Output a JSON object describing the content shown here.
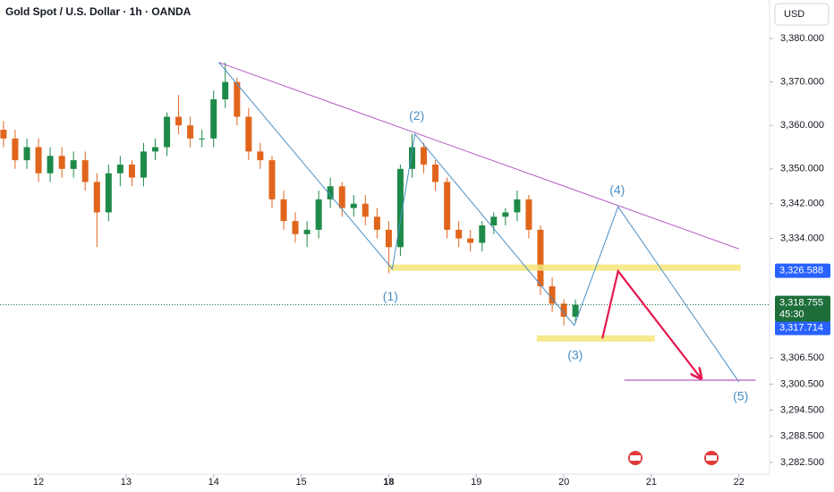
{
  "chart_data": {
    "type": "candlestick",
    "title": "Gold Spot / U.S. Dollar · 1h · OANDA",
    "currency": "USD",
    "up_color": "#1e8a4a",
    "down_color": "#e0651c",
    "xlim": [
      -0.44,
      8.35
    ],
    "ylim": [
      3279.8,
      3388.85
    ],
    "xticks": [
      {
        "value": 0,
        "label": "12"
      },
      {
        "value": 1,
        "label": "13"
      },
      {
        "value": 2,
        "label": "14"
      },
      {
        "value": 3,
        "label": "15"
      },
      {
        "value": 4,
        "label": "18"
      },
      {
        "value": 5,
        "label": "19"
      },
      {
        "value": 6,
        "label": "20"
      },
      {
        "value": 7,
        "label": "21"
      },
      {
        "value": 8,
        "label": "22"
      }
    ],
    "yticks": [
      {
        "value": 3380,
        "label": "3,380.000"
      },
      {
        "value": 3370,
        "label": "3,370.000"
      },
      {
        "value": 3360,
        "label": "3,360.000"
      },
      {
        "value": 3350,
        "label": "3,350.000"
      },
      {
        "value": 3342,
        "label": "3,342.000"
      },
      {
        "value": 3334,
        "label": "3,334.000"
      },
      {
        "value": 3306.5,
        "label": "3,306.500"
      },
      {
        "value": 3300.5,
        "label": "3,300.500"
      },
      {
        "value": 3294.5,
        "label": "3,294.500"
      },
      {
        "value": 3288.5,
        "label": "3,288.500"
      },
      {
        "value": 3282.5,
        "label": "3,282.500"
      }
    ],
    "x": [
      -0.4,
      -0.267,
      -0.133,
      0,
      0.133,
      0.267,
      0.4,
      0.533,
      0.667,
      0.8,
      0.933,
      1.067,
      1.2,
      1.333,
      1.467,
      1.6,
      1.733,
      1.867,
      2.0,
      2.133,
      2.267,
      2.4,
      2.533,
      2.667,
      2.8,
      2.933,
      3.067,
      3.2,
      3.333,
      3.467,
      3.6,
      3.733,
      3.867,
      4.0,
      4.133,
      4.267,
      4.4,
      4.533,
      4.667,
      4.8,
      4.933,
      5.067,
      5.2,
      5.333,
      5.467,
      5.6,
      5.733,
      5.867,
      6.0,
      6.133
    ],
    "open": [
      3359,
      3357,
      3352,
      3355,
      3349,
      3353,
      3350,
      3352,
      3347,
      3340,
      3349,
      3351,
      3348,
      3354,
      3355,
      3362,
      3360,
      3357,
      3357,
      3366,
      3370,
      3362,
      3354,
      3352,
      3343,
      3338,
      3335,
      3336,
      3343,
      3346,
      3341,
      3342,
      3339,
      3336,
      3332,
      3350,
      3355,
      3351,
      3347,
      3336,
      3334,
      3333,
      3337,
      3339,
      3340,
      3343,
      3336,
      3323,
      3319,
      3316
    ],
    "high": [
      3361,
      3359,
      3357,
      3357,
      3355,
      3355,
      3354,
      3354,
      3349,
      3351,
      3353,
      3352,
      3356,
      3357,
      3363,
      3367,
      3362,
      3359,
      3368,
      3374.5,
      3371,
      3364,
      3356,
      3353,
      3345,
      3340,
      3338,
      3345,
      3348,
      3347,
      3344,
      3344,
      3341,
      3338,
      3351,
      3358,
      3356,
      3352,
      3348,
      3338,
      3336,
      3338,
      3340,
      3341,
      3345,
      3344,
      3337,
      3325,
      3320,
      3320
    ],
    "low": [
      3355,
      3350,
      3350,
      3347,
      3347,
      3348,
      3348,
      3345,
      3332,
      3338,
      3346,
      3346,
      3346,
      3352,
      3353,
      3358,
      3355,
      3355,
      3355,
      3364,
      3360,
      3352,
      3350,
      3341,
      3336,
      3333,
      3332,
      3334,
      3341,
      3339,
      3339,
      3337,
      3334,
      3326,
      3330,
      3348,
      3349,
      3345,
      3334,
      3332,
      3331,
      3331,
      3335,
      3337,
      3338,
      3334,
      3321,
      3317,
      3314,
      3314.5
    ],
    "close": [
      3357,
      3352,
      3355,
      3349,
      3353,
      3350,
      3352,
      3347,
      3340,
      3349,
      3351,
      3348,
      3354,
      3355,
      3362,
      3360,
      3357,
      3357,
      3366,
      3370,
      3362,
      3354,
      3352,
      3343,
      3338,
      3335,
      3336,
      3343,
      3346,
      3341,
      3342,
      3339,
      3336,
      3332,
      3350,
      3355,
      3351,
      3347,
      3336,
      3334,
      3333,
      3337,
      3339,
      3340,
      3343,
      3336,
      3323,
      3319,
      3316,
      3318.755
    ],
    "last_price": {
      "value": 3318.755,
      "label": "3,318.755",
      "countdown": "45:30",
      "color": "#1e6e3a"
    },
    "price_labels": [
      {
        "value": 3326.588,
        "label": "3,326.588",
        "color": "#2962ff"
      },
      {
        "value": 3317.714,
        "label": "3,317.714",
        "color": "#2962ff"
      }
    ],
    "trendline": {
      "x": [
        2.06,
        8.0
      ],
      "y": [
        3374.5,
        3331.6
      ],
      "color": "#b35cc0"
    },
    "wave": {
      "x": [
        2.06,
        4.04,
        4.3,
        6.12,
        6.62,
        8.0
      ],
      "y": [
        3374.5,
        3327,
        3358,
        3314,
        3341.3,
        3301
      ],
      "color": "#4a8fc6"
    },
    "zones": [
      {
        "x": [
          4.0,
          8.02
        ],
        "y": 3327.3
      },
      {
        "x": [
          5.69,
          7.04
        ],
        "y": 3311
      }
    ],
    "zone_color": "#f5e57a",
    "arrow": {
      "x": [
        6.44,
        6.62,
        7.56
      ],
      "y": [
        3311,
        3326.5,
        3302
      ],
      "color": "#e5194f"
    },
    "target_line": {
      "x": [
        6.69,
        8.19
      ],
      "y": 3301.4,
      "color": "#b35cc0"
    },
    "wave_labels": [
      {
        "text": "(1)",
        "x": 4.02,
        "y": 3320.5
      },
      {
        "text": "(2)",
        "x": 4.32,
        "y": 3362
      },
      {
        "text": "(3)",
        "x": 6.13,
        "y": 3307
      },
      {
        "text": "(4)",
        "x": 6.61,
        "y": 3345
      },
      {
        "text": "(5)",
        "x": 8.02,
        "y": 3297.5
      }
    ]
  }
}
